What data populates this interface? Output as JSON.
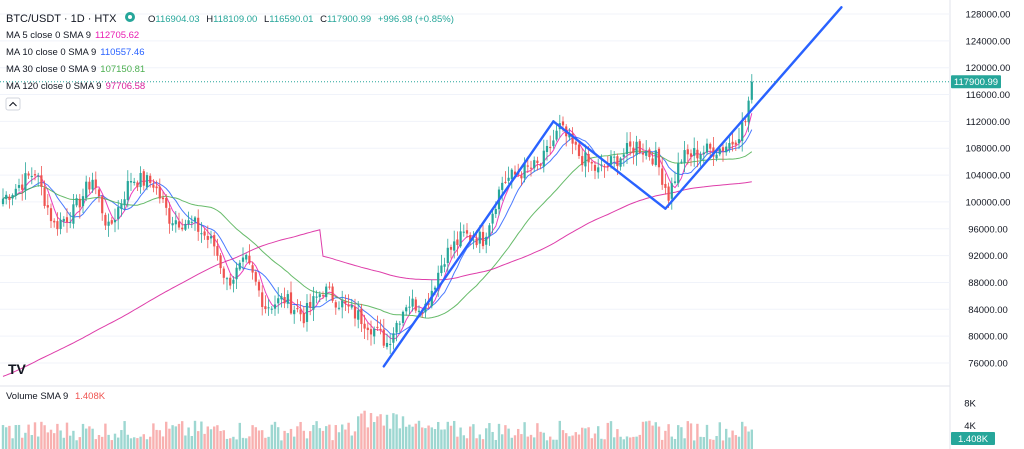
{
  "header": {
    "symbol": "BTC/USDT · 1D · HTX",
    "ohlc": {
      "open_label": "O",
      "open": "116904.03",
      "high_label": "H",
      "high": "118109.00",
      "low_label": "L",
      "low": "116590.01",
      "close_label": "C",
      "close": "117900.99",
      "change": "+996.98 (+0.85%)"
    },
    "up_color": "#26a69a",
    "down_color": "#ef5350"
  },
  "indicators": [
    {
      "label": "MA 5 close 0 SMA 9",
      "value": "112705.62",
      "color": "#e91eb2"
    },
    {
      "label": "MA 10 close 0 SMA 9",
      "value": "110557.46",
      "color": "#2962ff"
    },
    {
      "label": "MA 30 close 0 SMA 9",
      "value": "107150.81",
      "color": "#4caf50"
    },
    {
      "label": "MA 120 close 0 SMA 9",
      "value": "97706.58",
      "color": "#d81b9a"
    }
  ],
  "volume_legend": {
    "label": "Volume SMA 9",
    "value": "1.408K"
  },
  "logo": "TV",
  "chart_data": {
    "type": "candlestick",
    "y_axis": {
      "ticks": [
        "128000.00",
        "124000.00",
        "120000.00",
        "116000.00",
        "112000.00",
        "108000.00",
        "104000.00",
        "100000.00",
        "96000.00",
        "92000.00",
        "88000.00",
        "84000.00",
        "80000.00",
        "76000.00"
      ],
      "range": [
        74000,
        129000
      ]
    },
    "price_label": "117900.99",
    "last_price": 117900.99,
    "volume_axis": {
      "ticks": [
        "8K",
        "4K"
      ],
      "current_label": "1.408K",
      "range": [
        0,
        10
      ]
    },
    "close_anchors": [
      [
        0,
        100500
      ],
      [
        10,
        104500
      ],
      [
        16,
        96500
      ],
      [
        22,
        98500
      ],
      [
        28,
        103500
      ],
      [
        33,
        95800
      ],
      [
        40,
        103500
      ],
      [
        47,
        102800
      ],
      [
        52,
        97700
      ],
      [
        60,
        96500
      ],
      [
        66,
        93500
      ],
      [
        70,
        88000
      ],
      [
        76,
        91000
      ],
      [
        82,
        84500
      ],
      [
        88,
        85500
      ],
      [
        94,
        83000
      ],
      [
        100,
        87000
      ],
      [
        108,
        84000
      ],
      [
        114,
        82000
      ],
      [
        120,
        79000
      ],
      [
        126,
        85000
      ],
      [
        132,
        84500
      ],
      [
        138,
        92000
      ],
      [
        144,
        95000
      ],
      [
        150,
        94500
      ],
      [
        156,
        103000
      ],
      [
        162,
        104500
      ],
      [
        168,
        105500
      ],
      [
        174,
        111000
      ],
      [
        180,
        107000
      ],
      [
        186,
        104500
      ],
      [
        192,
        106500
      ],
      [
        198,
        108500
      ],
      [
        204,
        106500
      ],
      [
        208,
        101000
      ],
      [
        212,
        106500
      ],
      [
        218,
        107500
      ],
      [
        224,
        108000
      ],
      [
        228,
        109000
      ],
      [
        232,
        112000
      ],
      [
        234,
        117900.99
      ]
    ],
    "moving_averages": [
      {
        "name": "MA 5",
        "color": "#e91eb2",
        "period": 5
      },
      {
        "name": "MA 10",
        "color": "#2962ff",
        "period": 10
      },
      {
        "name": "MA 30",
        "color": "#4caf50",
        "period": 30
      },
      {
        "name": "MA 120",
        "color": "#d81b9a",
        "period": 120
      }
    ],
    "trendlines": [
      {
        "name": "trendline-1",
        "from": [
          119,
          75500
        ],
        "to": [
          172,
          112000
        ]
      },
      {
        "name": "trendline-2",
        "from": [
          172,
          112000
        ],
        "to": [
          207,
          99000
        ]
      },
      {
        "name": "trendline-3",
        "from": [
          207,
          99000
        ],
        "to": [
          262,
          129000
        ]
      }
    ],
    "trendline_color": "#2962ff"
  }
}
